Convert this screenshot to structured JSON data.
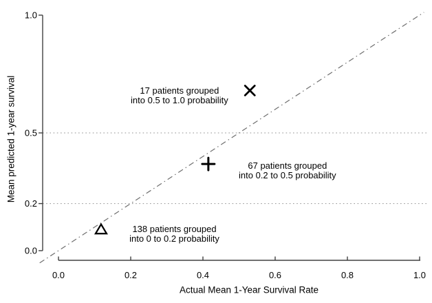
{
  "colors": {
    "background": "#ffffff",
    "axis": "#404040",
    "text": "#000000",
    "identity_line": "#6e6e6e",
    "gridline": "#8f8f8f",
    "marker": "#000000"
  },
  "chart_data": {
    "type": "scatter",
    "title": "",
    "xlabel": "Actual Mean 1-Year Survival Rate",
    "ylabel": "Mean predicted 1-year survival",
    "xlim": [
      0,
      1
    ],
    "ylim": [
      0,
      1
    ],
    "grid": "horizontal-dotted-only",
    "legend": "none",
    "x_ticks": [
      0.0,
      0.2,
      0.4,
      0.6,
      0.8,
      1.0
    ],
    "x_tick_labels": [
      "0.0",
      "0.2",
      "0.4",
      "0.6",
      "0.8",
      "1.0"
    ],
    "y_ticks": [
      0.0,
      0.2,
      0.5,
      1.0
    ],
    "y_tick_labels": [
      "0.0",
      "0.2",
      "0.5",
      "1.0"
    ],
    "gridlines_y": [
      0.2,
      0.5
    ],
    "identity_line": {
      "style": "dash-dot",
      "from_xy": [
        -0.052,
        -0.052
      ],
      "to_xy": [
        1.012,
        1.012
      ]
    },
    "points": [
      {
        "marker": "triangle-open",
        "x": 0.118,
        "y": 0.09,
        "n_patients": 138,
        "probability_bin": "0 to 0.2"
      },
      {
        "marker": "plus",
        "x": 0.415,
        "y": 0.368,
        "n_patients": 67,
        "probability_bin": "0.2 to 0.5"
      },
      {
        "marker": "cross",
        "x": 0.53,
        "y": 0.68,
        "n_patients": 17,
        "probability_bin": "0.5 to 1.0"
      }
    ],
    "annotations": [
      {
        "lines": [
          "17 patients grouped",
          "into 0.5 to 1.0 probability"
        ],
        "anchor_x": 0.335,
        "anchor_y": 0.657
      },
      {
        "lines": [
          "67 patients grouped",
          "into 0.2 to 0.5 probability"
        ],
        "anchor_x": 0.634,
        "anchor_y": 0.34
      },
      {
        "lines": [
          "138 patients grouped",
          "into 0 to 0.2 probability"
        ],
        "anchor_x": 0.321,
        "anchor_y": 0.07
      }
    ]
  }
}
